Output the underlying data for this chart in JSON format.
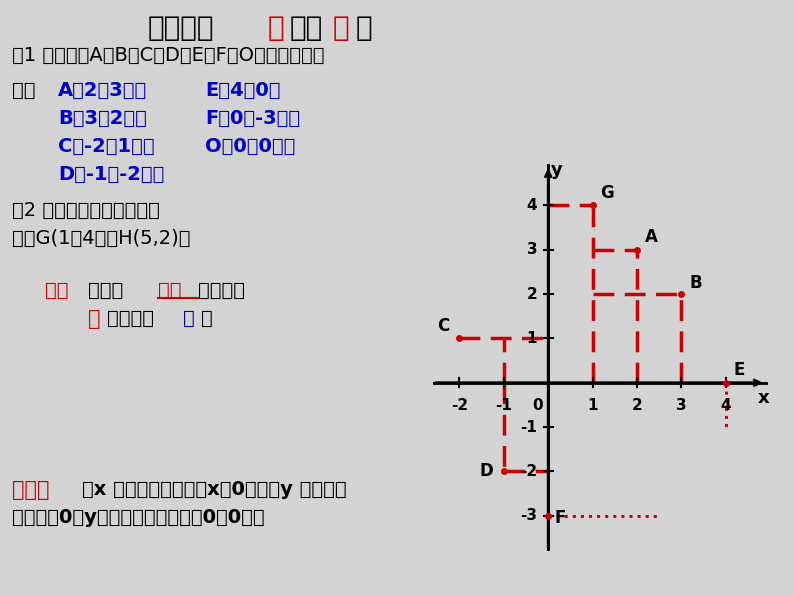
{
  "bg_color": "#d3d3d3",
  "points": {
    "A": [
      2,
      3
    ],
    "B": [
      3,
      2
    ],
    "C": [
      -2,
      1
    ],
    "D": [
      -1,
      -2
    ],
    "E": [
      4,
      0
    ],
    "F": [
      0,
      -3
    ],
    "G": [
      1,
      4
    ]
  },
  "dash_color": "#cc0000",
  "xlim": [
    -2.6,
    5.0
  ],
  "ylim": [
    -3.8,
    5.0
  ],
  "xticks": [
    -2,
    -1,
    1,
    2,
    3,
    4
  ],
  "yticks": [
    -3,
    -2,
    -1,
    1,
    2,
    3,
    4
  ],
  "blue": "#0000cc",
  "red": "#cc0000",
  "black": "#000000"
}
